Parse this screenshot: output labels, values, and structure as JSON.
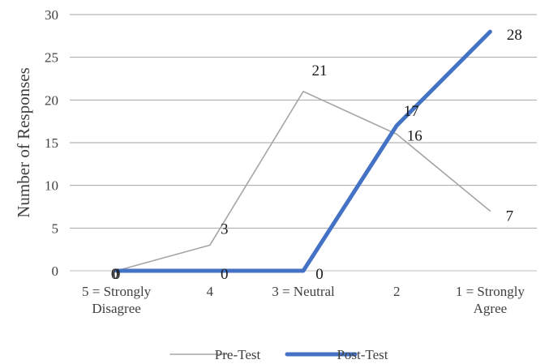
{
  "chart_data": {
    "type": "line",
    "title": "",
    "xlabel": "",
    "ylabel": "Number of Responses",
    "ylim": [
      0,
      30
    ],
    "yticks": [
      0,
      5,
      10,
      15,
      20,
      25,
      30
    ],
    "grid": true,
    "legend_position": "bottom",
    "categories": [
      [
        "5 = Strongly",
        "Disagree"
      ],
      [
        "4"
      ],
      [
        "3 = Neutral"
      ],
      [
        "2"
      ],
      [
        "1 = Strongly",
        "Agree"
      ]
    ],
    "series": [
      {
        "name": "Pre-Test",
        "values": [
          0,
          3,
          21,
          16,
          7
        ],
        "color": "#a5a5a5"
      },
      {
        "name": "Post-Test",
        "values": [
          0,
          0,
          0,
          17,
          28
        ],
        "color": "#4472c4"
      }
    ]
  }
}
